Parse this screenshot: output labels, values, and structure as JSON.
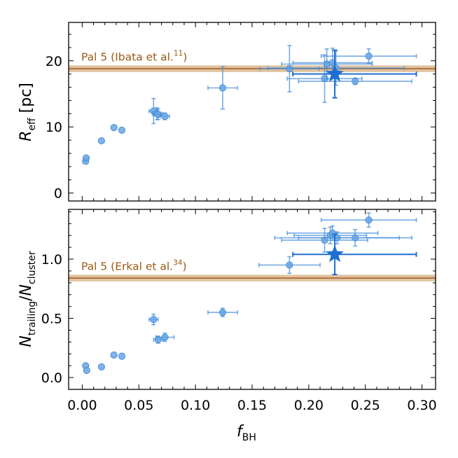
{
  "chart_data": [
    {
      "type": "scatter",
      "panel": "top",
      "ylabel_main": "R",
      "ylabel_sub": "eff",
      "ylabel_unit": " [pc]",
      "xlim": [
        -0.012,
        0.312
      ],
      "ylim": [
        -1.2,
        25.8
      ],
      "yticks": [
        0,
        10,
        20
      ],
      "xticks": [
        0.0,
        0.05,
        0.1,
        0.15,
        0.2,
        0.25,
        0.3
      ],
      "band": {
        "label_main": "Pal 5 (Ibata et al.",
        "label_sup": "11",
        "label_close": ")",
        "center": 18.8,
        "half_width": 0.5,
        "color": "#c7924f",
        "line_color": "#a0521f"
      },
      "points": [
        {
          "x": 0.003,
          "y": 4.8,
          "xerr": 0.0,
          "yerr": 0.0
        },
        {
          "x": 0.0035,
          "y": 5.3,
          "xerr": 0.0,
          "yerr": 0.0
        },
        {
          "x": 0.017,
          "y": 7.9,
          "xerr": 0.0,
          "yerr": 0.0
        },
        {
          "x": 0.028,
          "y": 9.9,
          "xerr": 0.0,
          "yerr": 0.0
        },
        {
          "x": 0.035,
          "y": 9.5,
          "xerr": 0.0,
          "yerr": 0.0
        },
        {
          "x": 0.063,
          "y": 12.4,
          "xerr": 0.004,
          "yerr": 1.9
        },
        {
          "x": 0.066,
          "y": 12.0,
          "xerr": 0.004,
          "yerr": 0.9
        },
        {
          "x": 0.067,
          "y": 11.9,
          "xerr": 0.004,
          "yerr": 0.8
        },
        {
          "x": 0.073,
          "y": 11.6,
          "xerr": 0.004,
          "yerr": 0.5
        },
        {
          "x": 0.124,
          "y": 15.9,
          "xerr": 0.013,
          "yerr": 3.2
        },
        {
          "x": 0.183,
          "y": 18.8,
          "xerr": 0.026,
          "yerr": 3.5
        },
        {
          "x": 0.214,
          "y": 17.3,
          "xerr": 0.033,
          "yerr": 3.6
        },
        {
          "x": 0.216,
          "y": 19.5,
          "xerr": 0.04,
          "yerr": 2.3
        },
        {
          "x": 0.221,
          "y": 19.7,
          "xerr": 0.035,
          "yerr": 2.2
        },
        {
          "x": 0.224,
          "y": 18.9,
          "xerr": 0.06,
          "yerr": 2.6
        },
        {
          "x": 0.241,
          "y": 16.9,
          "xerr": 0.05,
          "yerr": 0.5
        },
        {
          "x": 0.253,
          "y": 20.7,
          "xerr": 0.042,
          "yerr": 1.1
        }
      ],
      "highlight": {
        "x": 0.223,
        "y": 18.0,
        "xerr_low": 0.037,
        "xerr_high": 0.072,
        "yerr": 3.6
      }
    },
    {
      "type": "scatter",
      "panel": "bottom",
      "ylabel_main": "N",
      "ylabel_sub": "trailing",
      "ylabel_sep": "/",
      "ylabel_main2": "N",
      "ylabel_sub2": "cluster",
      "xlabel_main": "f",
      "xlabel_sub": "BH",
      "xlim": [
        -0.012,
        0.312
      ],
      "ylim": [
        -0.1,
        1.42
      ],
      "yticks": [
        0.0,
        0.5,
        1.0
      ],
      "ytick_labels": [
        "0.0",
        "0.5",
        "1.0"
      ],
      "xticks": [
        0.0,
        0.05,
        0.1,
        0.15,
        0.2,
        0.25,
        0.3
      ],
      "xtick_labels": [
        "0.00",
        "0.05",
        "0.10",
        "0.15",
        "0.20",
        "0.25",
        "0.30"
      ],
      "band": {
        "label_main": "Pal 5 (Erkal et al.",
        "label_sup": "34",
        "label_close": ")",
        "center": 0.84,
        "half_width": 0.028,
        "color": "#c7924f",
        "line_color": "#a0521f"
      },
      "points": [
        {
          "x": 0.003,
          "y": 0.1,
          "xerr": 0.0,
          "yerr": 0.0
        },
        {
          "x": 0.004,
          "y": 0.06,
          "xerr": 0.0,
          "yerr": 0.0
        },
        {
          "x": 0.017,
          "y": 0.09,
          "xerr": 0.0,
          "yerr": 0.0
        },
        {
          "x": 0.028,
          "y": 0.19,
          "xerr": 0.0,
          "yerr": 0.0
        },
        {
          "x": 0.035,
          "y": 0.18,
          "xerr": 0.0,
          "yerr": 0.0
        },
        {
          "x": 0.063,
          "y": 0.49,
          "xerr": 0.004,
          "yerr": 0.045
        },
        {
          "x": 0.067,
          "y": 0.32,
          "xerr": 0.004,
          "yerr": 0.03
        },
        {
          "x": 0.073,
          "y": 0.34,
          "xerr": 0.008,
          "yerr": 0.035
        },
        {
          "x": 0.124,
          "y": 0.55,
          "xerr": 0.013,
          "yerr": 0.035
        },
        {
          "x": 0.183,
          "y": 0.95,
          "xerr": 0.027,
          "yerr": 0.07
        },
        {
          "x": 0.214,
          "y": 1.16,
          "xerr": 0.038,
          "yerr": 0.1
        },
        {
          "x": 0.219,
          "y": 1.2,
          "xerr": 0.032,
          "yerr": 0.07
        },
        {
          "x": 0.221,
          "y": 1.22,
          "xerr": 0.04,
          "yerr": 0.06
        },
        {
          "x": 0.225,
          "y": 1.18,
          "xerr": 0.055,
          "yerr": 0.05
        },
        {
          "x": 0.241,
          "y": 1.18,
          "xerr": 0.05,
          "yerr": 0.07
        },
        {
          "x": 0.253,
          "y": 1.33,
          "xerr": 0.042,
          "yerr": 0.06
        }
      ],
      "highlight": {
        "x": 0.223,
        "y": 1.04,
        "xerr_low": 0.037,
        "xerr_high": 0.072,
        "yerr": 0.17
      }
    }
  ],
  "colors": {
    "point": "#4a90d9",
    "point_fill": "#6aa6e4",
    "highlight": "#1f6fcf",
    "axis": "#000000"
  }
}
